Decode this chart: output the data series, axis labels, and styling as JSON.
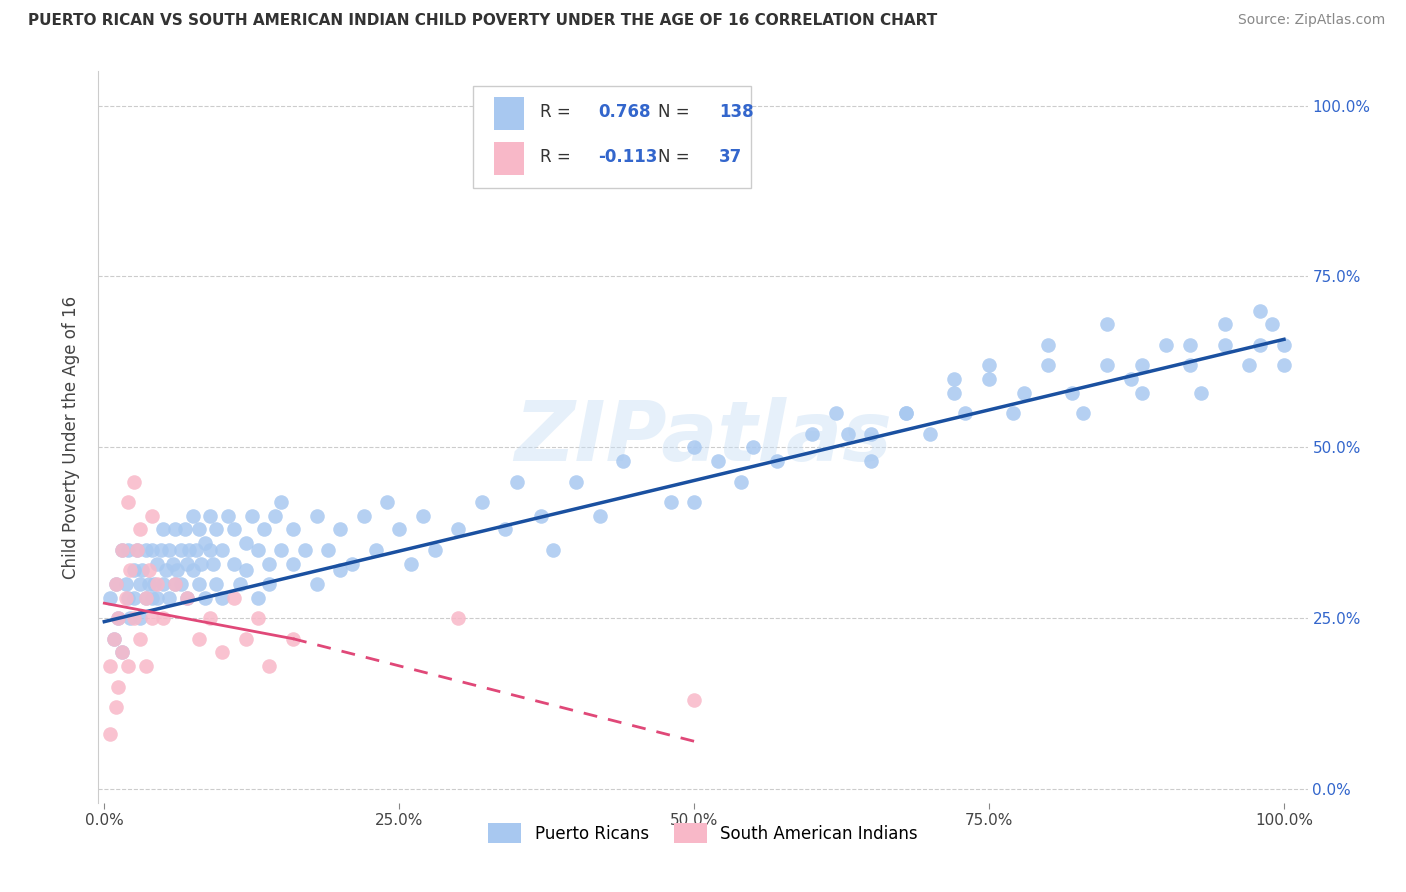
{
  "title": "PUERTO RICAN VS SOUTH AMERICAN INDIAN CHILD POVERTY UNDER THE AGE OF 16 CORRELATION CHART",
  "source": "Source: ZipAtlas.com",
  "ylabel": "Child Poverty Under the Age of 16",
  "background_color": "#ffffff",
  "blue_color": "#a8c8f0",
  "blue_line_color": "#1a50a0",
  "pink_color": "#f8b8c8",
  "pink_line_color": "#e04878",
  "watermark_text": "ZIPatlas",
  "legend_labels": [
    "Puerto Ricans",
    "South American Indians"
  ],
  "ytick_labels_right": [
    "100.0%",
    "75.0%",
    "50.0%",
    "25.0%",
    "0.0%"
  ],
  "ytick_values": [
    1.0,
    0.75,
    0.5,
    0.25,
    0.0
  ],
  "xtick_labels": [
    "0.0%",
    "25.0%",
    "50.0%",
    "75.0%",
    "100.0%"
  ],
  "xtick_values": [
    0.0,
    0.25,
    0.5,
    0.75,
    1.0
  ],
  "blue_line_x0": 0.0,
  "blue_line_y0": 0.245,
  "blue_line_x1": 1.0,
  "blue_line_y1": 0.658,
  "pink_line_x0": 0.0,
  "pink_line_y0": 0.272,
  "pink_line_x1_solid": 0.16,
  "pink_line_y1_solid": 0.22,
  "pink_line_x1_dash": 0.5,
  "pink_line_y1_dash": 0.07,
  "blue_scatter_x": [
    0.005,
    0.008,
    0.01,
    0.012,
    0.015,
    0.015,
    0.018,
    0.02,
    0.02,
    0.022,
    0.025,
    0.025,
    0.028,
    0.03,
    0.03,
    0.032,
    0.035,
    0.035,
    0.038,
    0.04,
    0.04,
    0.042,
    0.045,
    0.045,
    0.048,
    0.05,
    0.05,
    0.052,
    0.055,
    0.055,
    0.058,
    0.06,
    0.06,
    0.062,
    0.065,
    0.065,
    0.068,
    0.07,
    0.07,
    0.072,
    0.075,
    0.075,
    0.078,
    0.08,
    0.08,
    0.082,
    0.085,
    0.085,
    0.09,
    0.09,
    0.092,
    0.095,
    0.095,
    0.1,
    0.1,
    0.105,
    0.11,
    0.11,
    0.115,
    0.12,
    0.12,
    0.125,
    0.13,
    0.13,
    0.135,
    0.14,
    0.14,
    0.145,
    0.15,
    0.15,
    0.16,
    0.16,
    0.17,
    0.18,
    0.18,
    0.19,
    0.2,
    0.2,
    0.21,
    0.22,
    0.23,
    0.24,
    0.25,
    0.26,
    0.27,
    0.28,
    0.3,
    0.32,
    0.34,
    0.35,
    0.37,
    0.38,
    0.4,
    0.42,
    0.44,
    0.48,
    0.5,
    0.5,
    0.52,
    0.54,
    0.55,
    0.57,
    0.6,
    0.62,
    0.65,
    0.65,
    0.68,
    0.7,
    0.72,
    0.73,
    0.75,
    0.77,
    0.78,
    0.8,
    0.82,
    0.83,
    0.85,
    0.87,
    0.88,
    0.9,
    0.92,
    0.93,
    0.95,
    0.97,
    0.98,
    0.99,
    1.0,
    1.0,
    0.63,
    0.68,
    0.72,
    0.75,
    0.8,
    0.85,
    0.88,
    0.92,
    0.95,
    0.98
  ],
  "blue_scatter_y": [
    0.28,
    0.22,
    0.3,
    0.25,
    0.35,
    0.2,
    0.3,
    0.28,
    0.35,
    0.25,
    0.32,
    0.28,
    0.35,
    0.3,
    0.25,
    0.32,
    0.28,
    0.35,
    0.3,
    0.28,
    0.35,
    0.3,
    0.33,
    0.28,
    0.35,
    0.3,
    0.38,
    0.32,
    0.35,
    0.28,
    0.33,
    0.3,
    0.38,
    0.32,
    0.35,
    0.3,
    0.38,
    0.33,
    0.28,
    0.35,
    0.32,
    0.4,
    0.35,
    0.3,
    0.38,
    0.33,
    0.36,
    0.28,
    0.35,
    0.4,
    0.33,
    0.3,
    0.38,
    0.35,
    0.28,
    0.4,
    0.33,
    0.38,
    0.3,
    0.36,
    0.32,
    0.4,
    0.35,
    0.28,
    0.38,
    0.33,
    0.3,
    0.4,
    0.35,
    0.42,
    0.38,
    0.33,
    0.35,
    0.3,
    0.4,
    0.35,
    0.32,
    0.38,
    0.33,
    0.4,
    0.35,
    0.42,
    0.38,
    0.33,
    0.4,
    0.35,
    0.38,
    0.42,
    0.38,
    0.45,
    0.4,
    0.35,
    0.45,
    0.4,
    0.48,
    0.42,
    0.5,
    0.42,
    0.48,
    0.45,
    0.5,
    0.48,
    0.52,
    0.55,
    0.52,
    0.48,
    0.55,
    0.52,
    0.58,
    0.55,
    0.6,
    0.55,
    0.58,
    0.62,
    0.58,
    0.55,
    0.62,
    0.6,
    0.58,
    0.65,
    0.62,
    0.58,
    0.65,
    0.62,
    0.65,
    0.68,
    0.65,
    0.62,
    0.52,
    0.55,
    0.6,
    0.62,
    0.65,
    0.68,
    0.62,
    0.65,
    0.68,
    0.7
  ],
  "pink_scatter_x": [
    0.005,
    0.005,
    0.008,
    0.01,
    0.01,
    0.012,
    0.012,
    0.015,
    0.015,
    0.018,
    0.02,
    0.02,
    0.022,
    0.025,
    0.025,
    0.028,
    0.03,
    0.03,
    0.035,
    0.035,
    0.038,
    0.04,
    0.04,
    0.045,
    0.05,
    0.06,
    0.07,
    0.08,
    0.09,
    0.1,
    0.11,
    0.12,
    0.13,
    0.14,
    0.16,
    0.3,
    0.5
  ],
  "pink_scatter_y": [
    0.18,
    0.08,
    0.22,
    0.3,
    0.12,
    0.25,
    0.15,
    0.35,
    0.2,
    0.28,
    0.42,
    0.18,
    0.32,
    0.45,
    0.25,
    0.35,
    0.38,
    0.22,
    0.28,
    0.18,
    0.32,
    0.25,
    0.4,
    0.3,
    0.25,
    0.3,
    0.28,
    0.22,
    0.25,
    0.2,
    0.28,
    0.22,
    0.25,
    0.18,
    0.22,
    0.25,
    0.13
  ]
}
